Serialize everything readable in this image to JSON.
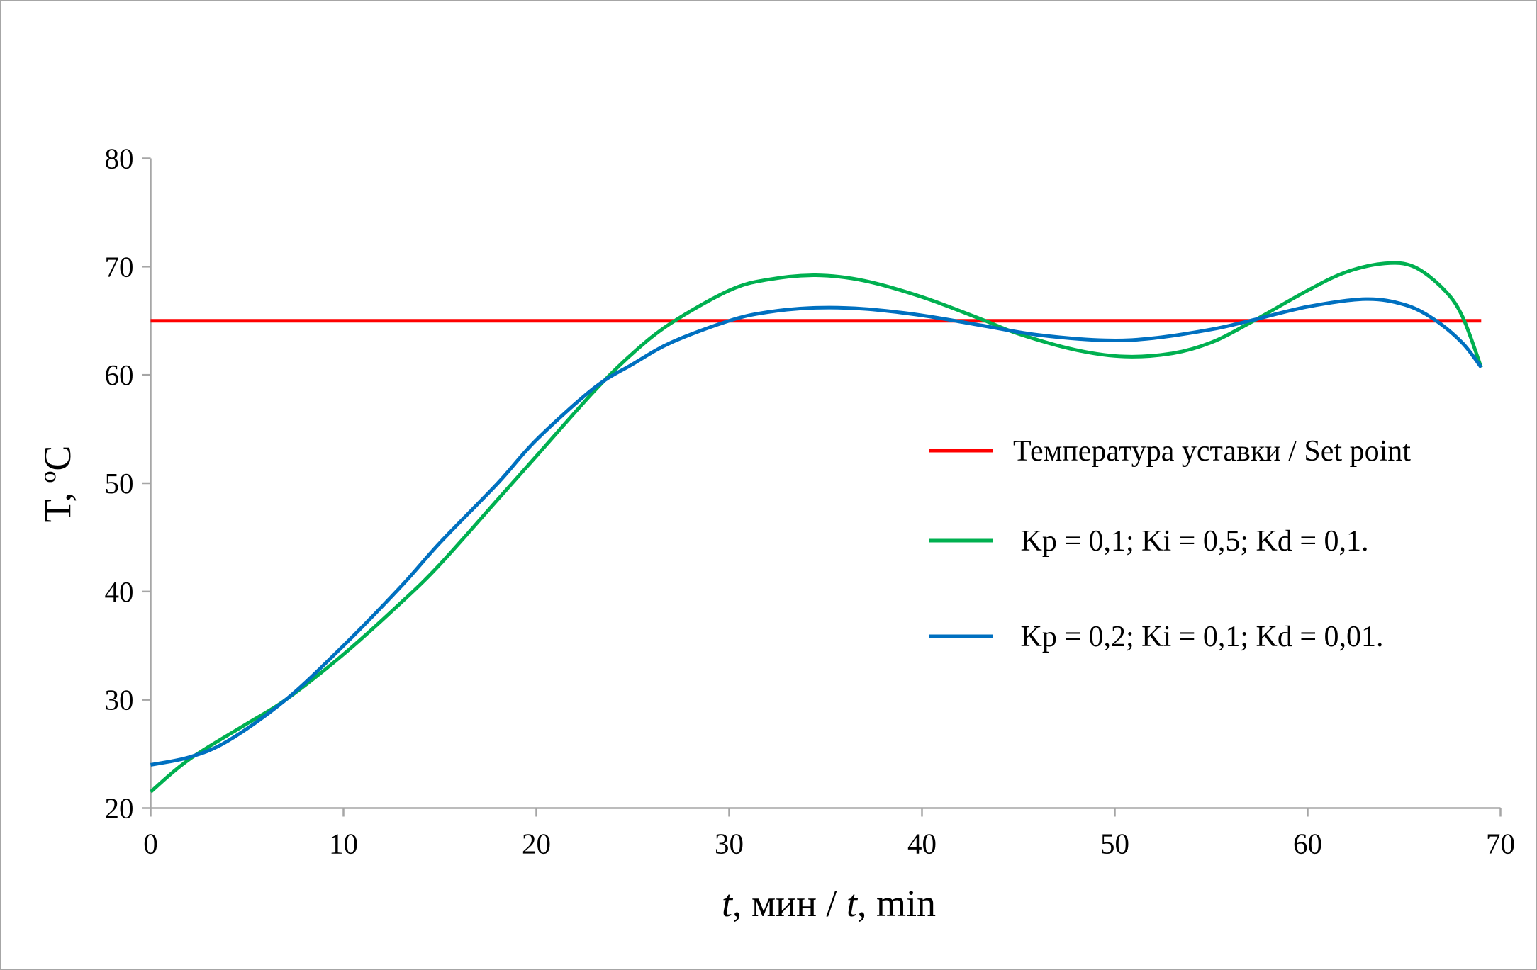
{
  "chart_data": {
    "type": "line",
    "xlabel": {
      "prefix": "t",
      "middle": ", мин / ",
      "italic2": "t",
      "suffix": ", min"
    },
    "ylabel": "T, ºC",
    "xlim": [
      0,
      70
    ],
    "ylim": [
      20,
      80
    ],
    "xticks": [
      "0",
      "10",
      "20",
      "30",
      "40",
      "50",
      "60",
      "70"
    ],
    "yticks": [
      "20",
      "30",
      "40",
      "50",
      "60",
      "70",
      "80"
    ],
    "grid": false,
    "legend_placement": "right",
    "series": [
      {
        "name": "Температура уставки / Set point",
        "color": "#ff0000",
        "x": [
          0,
          69
        ],
        "y": [
          65,
          65
        ]
      },
      {
        "name": " Kp = 0,1; Ki = 0,5; Kd = 0,1.",
        "color": "#00b050",
        "x": [
          0,
          2,
          5,
          7,
          10,
          13,
          15,
          18,
          20,
          23,
          25,
          27,
          30,
          32,
          34.5,
          37,
          40,
          43,
          45,
          48,
          50.5,
          53,
          55,
          57,
          60,
          62,
          64,
          65.5,
          67,
          68,
          69
        ],
        "y": [
          21.5,
          24.5,
          27.8,
          30,
          34.2,
          39,
          42.5,
          48.5,
          52.5,
          58.5,
          62,
          64.8,
          67.8,
          68.8,
          69.2,
          68.7,
          67.2,
          65.2,
          63.8,
          62.3,
          61.7,
          62,
          63,
          64.8,
          67.8,
          69.5,
          70.3,
          70,
          68,
          65.5,
          60.7
        ]
      },
      {
        "name": " Kp = 0,2; Ki = 0,1; Kd = 0,01.",
        "color": "#0070c0",
        "x": [
          0,
          2,
          4,
          7,
          10,
          13,
          15,
          18,
          20,
          23,
          25,
          27,
          30,
          32,
          34.5,
          37,
          40,
          43,
          46,
          49.5,
          52,
          55,
          57,
          60,
          63,
          65,
          66.5,
          68,
          69
        ],
        "y": [
          24,
          24.7,
          26.2,
          30,
          35,
          40.5,
          44.5,
          50,
          54,
          58.8,
          61,
          63,
          65,
          65.8,
          66.2,
          66.1,
          65.5,
          64.6,
          63.7,
          63.2,
          63.4,
          64.2,
          65,
          66.3,
          67,
          66.5,
          65.2,
          63,
          60.7
        ]
      }
    ]
  }
}
